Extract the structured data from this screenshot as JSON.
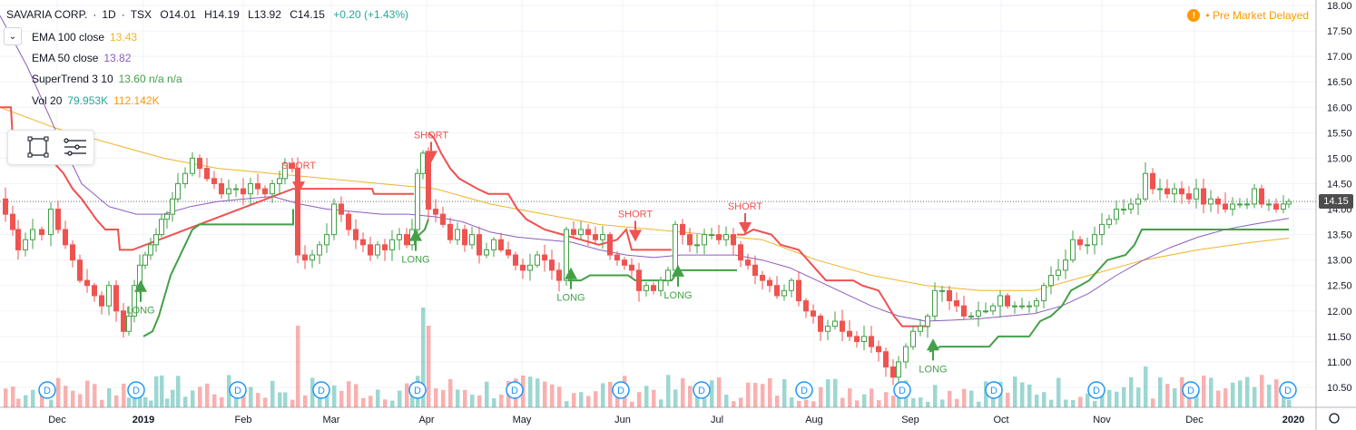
{
  "header": {
    "symbol": "SAVARIA CORP.",
    "interval": "1D",
    "exchange": "TSX",
    "open": "O14.01",
    "high": "H14.19",
    "low": "L13.92",
    "close": "C14.15",
    "change": "+0.20 (+1.43%)"
  },
  "indicators": [
    {
      "label": "EMA 100 close",
      "value": "13.43",
      "color": "#f0b429"
    },
    {
      "label": "EMA 50 close",
      "value": "13.82",
      "color": "#8b5cbf"
    },
    {
      "label": "SuperTrend 3 10",
      "value": "13.60  n/a  n/a",
      "color": "#43a047",
      "value2_color": "#ef5350"
    },
    {
      "label": "Vol 20",
      "value": "79.953K",
      "value2": "112.142K",
      "color": "#26a69a",
      "value2_color": "#ff9800"
    }
  ],
  "premarket": {
    "label": "Pre Market",
    "status": "Delayed",
    "icon": "exclamation-icon"
  },
  "last_price_label": "14.15",
  "dividend_marker": "D",
  "colors": {
    "up": "#43a047",
    "down": "#ef5350",
    "ema100": "#f0b429",
    "ema50": "#8b5cbf",
    "supertrend_up": "#43a047",
    "supertrend_down": "#f05050"
  },
  "chart_data": {
    "type": "candlestick",
    "y_axis_ticks": [
      "18.00",
      "17.50",
      "17.00",
      "16.50",
      "16.00",
      "15.50",
      "15.00",
      "14.50",
      "14.00",
      "13.50",
      "13.00",
      "12.50",
      "12.00",
      "11.50",
      "11.00",
      "10.50"
    ],
    "ylim": [
      10.3,
      18.0
    ],
    "x_axis_labels": [
      "Dec",
      "2019",
      "Feb",
      "Mar",
      "Apr",
      "May",
      "Jun",
      "Jul",
      "Aug",
      "Sep",
      "Oct",
      "Nov",
      "Dec",
      "2020"
    ],
    "last_price": 14.15,
    "close_path": [
      [
        0,
        14.2
      ],
      [
        6,
        13.9
      ],
      [
        14,
        13.6
      ],
      [
        20,
        13.2
      ],
      [
        28,
        13.4
      ],
      [
        36,
        13.6
      ],
      [
        46,
        13.5
      ],
      [
        56,
        14.0
      ],
      [
        64,
        13.6
      ],
      [
        72,
        13.3
      ],
      [
        80,
        13.0
      ],
      [
        88,
        12.6
      ],
      [
        96,
        12.5
      ],
      [
        104,
        12.3
      ],
      [
        112,
        12.1
      ],
      [
        120,
        12.5
      ],
      [
        128,
        12.0
      ],
      [
        136,
        11.6
      ],
      [
        142,
        11.9
      ],
      [
        148,
        12.5
      ],
      [
        154,
        12.9
      ],
      [
        160,
        13.1
      ],
      [
        166,
        13.3
      ],
      [
        172,
        13.5
      ],
      [
        178,
        13.8
      ],
      [
        184,
        13.9
      ],
      [
        190,
        14.2
      ],
      [
        196,
        14.5
      ],
      [
        204,
        14.7
      ],
      [
        212,
        15.0
      ],
      [
        220,
        14.8
      ],
      [
        228,
        14.6
      ],
      [
        236,
        14.5
      ],
      [
        244,
        14.3
      ],
      [
        252,
        14.4
      ],
      [
        260,
        14.4
      ],
      [
        268,
        14.3
      ],
      [
        276,
        14.5
      ],
      [
        284,
        14.4
      ],
      [
        292,
        14.3
      ],
      [
        300,
        14.5
      ],
      [
        308,
        14.6
      ],
      [
        314,
        14.9
      ],
      [
        322,
        14.8
      ],
      [
        328,
        13.1
      ],
      [
        336,
        13.0
      ],
      [
        344,
        13.1
      ],
      [
        352,
        13.3
      ],
      [
        360,
        13.5
      ],
      [
        368,
        14.1
      ],
      [
        376,
        13.9
      ],
      [
        384,
        13.6
      ],
      [
        392,
        13.4
      ],
      [
        400,
        13.3
      ],
      [
        408,
        13.1
      ],
      [
        416,
        13.3
      ],
      [
        424,
        13.2
      ],
      [
        432,
        13.4
      ],
      [
        440,
        13.5
      ],
      [
        448,
        13.3
      ],
      [
        454,
        13.6
      ],
      [
        460,
        14.7
      ],
      [
        466,
        15.1
      ],
      [
        472,
        14.0
      ],
      [
        480,
        13.9
      ],
      [
        488,
        13.7
      ],
      [
        496,
        13.4
      ],
      [
        504,
        13.6
      ],
      [
        512,
        13.3
      ],
      [
        520,
        13.5
      ],
      [
        528,
        13.1
      ],
      [
        536,
        13.2
      ],
      [
        544,
        13.4
      ],
      [
        552,
        13.2
      ],
      [
        560,
        13.1
      ],
      [
        568,
        12.9
      ],
      [
        576,
        12.8
      ],
      [
        584,
        12.9
      ],
      [
        592,
        13.1
      ],
      [
        600,
        13.0
      ],
      [
        608,
        12.8
      ],
      [
        616,
        12.6
      ],
      [
        624,
        13.6
      ],
      [
        632,
        13.5
      ],
      [
        640,
        13.6
      ],
      [
        648,
        13.5
      ],
      [
        656,
        13.4
      ],
      [
        664,
        13.5
      ],
      [
        672,
        13.1
      ],
      [
        680,
        13.0
      ],
      [
        688,
        12.9
      ],
      [
        696,
        12.8
      ],
      [
        704,
        12.4
      ],
      [
        712,
        12.5
      ],
      [
        720,
        12.4
      ],
      [
        728,
        12.6
      ],
      [
        736,
        12.8
      ],
      [
        744,
        13.7
      ],
      [
        752,
        13.5
      ],
      [
        760,
        13.3
      ],
      [
        768,
        13.3
      ],
      [
        776,
        13.5
      ],
      [
        784,
        13.5
      ],
      [
        792,
        13.4
      ],
      [
        800,
        13.5
      ],
      [
        808,
        13.3
      ],
      [
        816,
        13.0
      ],
      [
        824,
        12.9
      ],
      [
        832,
        12.7
      ],
      [
        840,
        12.6
      ],
      [
        848,
        12.5
      ],
      [
        856,
        12.3
      ],
      [
        864,
        12.4
      ],
      [
        872,
        12.6
      ],
      [
        880,
        12.2
      ],
      [
        888,
        12.0
      ],
      [
        896,
        11.9
      ],
      [
        904,
        11.6
      ],
      [
        912,
        11.7
      ],
      [
        920,
        11.8
      ],
      [
        928,
        11.6
      ],
      [
        936,
        11.5
      ],
      [
        944,
        11.4
      ],
      [
        952,
        11.5
      ],
      [
        960,
        11.3
      ],
      [
        968,
        11.2
      ],
      [
        976,
        10.9
      ],
      [
        984,
        10.7
      ],
      [
        990,
        11.0
      ],
      [
        998,
        11.3
      ],
      [
        1006,
        11.6
      ],
      [
        1014,
        11.7
      ],
      [
        1022,
        11.9
      ],
      [
        1030,
        12.4
      ],
      [
        1038,
        12.4
      ],
      [
        1046,
        12.2
      ],
      [
        1054,
        12.1
      ],
      [
        1062,
        11.9
      ],
      [
        1070,
        11.9
      ],
      [
        1078,
        12.0
      ],
      [
        1086,
        12.0
      ],
      [
        1094,
        12.1
      ],
      [
        1102,
        12.3
      ],
      [
        1110,
        12.1
      ],
      [
        1118,
        12.1
      ],
      [
        1126,
        12.1
      ],
      [
        1134,
        12.1
      ],
      [
        1142,
        12.2
      ],
      [
        1150,
        12.5
      ],
      [
        1158,
        12.7
      ],
      [
        1166,
        12.8
      ],
      [
        1174,
        13.0
      ],
      [
        1182,
        13.4
      ],
      [
        1190,
        13.3
      ],
      [
        1198,
        13.3
      ],
      [
        1206,
        13.5
      ],
      [
        1214,
        13.7
      ],
      [
        1222,
        13.8
      ],
      [
        1230,
        14.0
      ],
      [
        1238,
        14.0
      ],
      [
        1246,
        14.1
      ],
      [
        1254,
        14.2
      ],
      [
        1262,
        14.7
      ],
      [
        1270,
        14.4
      ],
      [
        1278,
        14.4
      ],
      [
        1286,
        14.3
      ],
      [
        1294,
        14.4
      ],
      [
        1302,
        14.3
      ],
      [
        1310,
        14.2
      ],
      [
        1318,
        14.4
      ],
      [
        1326,
        14.1
      ],
      [
        1334,
        14.2
      ],
      [
        1342,
        14.1
      ],
      [
        1350,
        14.0
      ],
      [
        1358,
        14.1
      ],
      [
        1366,
        14.1
      ],
      [
        1374,
        14.1
      ],
      [
        1382,
        14.4
      ],
      [
        1390,
        14.1
      ],
      [
        1398,
        14.1
      ],
      [
        1406,
        14.0
      ],
      [
        1414,
        14.1
      ],
      [
        1420,
        14.15
      ]
    ],
    "ema100": [
      [
        0,
        16.0
      ],
      [
        60,
        15.6
      ],
      [
        120,
        15.3
      ],
      [
        180,
        15.0
      ],
      [
        240,
        14.8
      ],
      [
        300,
        14.7
      ],
      [
        360,
        14.6
      ],
      [
        420,
        14.5
      ],
      [
        480,
        14.4
      ],
      [
        540,
        14.1
      ],
      [
        600,
        13.9
      ],
      [
        660,
        13.7
      ],
      [
        720,
        13.6
      ],
      [
        780,
        13.5
      ],
      [
        840,
        13.4
      ],
      [
        900,
        13.0
      ],
      [
        960,
        12.7
      ],
      [
        1020,
        12.5
      ],
      [
        1080,
        12.4
      ],
      [
        1140,
        12.4
      ],
      [
        1200,
        12.7
      ],
      [
        1260,
        13.0
      ],
      [
        1320,
        13.2
      ],
      [
        1380,
        13.35
      ],
      [
        1420,
        13.43
      ]
    ],
    "ema50": [
      [
        0,
        17.8
      ],
      [
        30,
        16.8
      ],
      [
        60,
        15.6
      ],
      [
        90,
        14.5
      ],
      [
        120,
        14.05
      ],
      [
        150,
        13.9
      ],
      [
        180,
        13.9
      ],
      [
        210,
        14.05
      ],
      [
        240,
        14.15
      ],
      [
        270,
        14.2
      ],
      [
        300,
        14.25
      ],
      [
        330,
        14.1
      ],
      [
        360,
        14.0
      ],
      [
        390,
        13.95
      ],
      [
        420,
        13.9
      ],
      [
        450,
        13.9
      ],
      [
        480,
        13.85
      ],
      [
        510,
        13.75
      ],
      [
        540,
        13.55
      ],
      [
        570,
        13.45
      ],
      [
        600,
        13.4
      ],
      [
        630,
        13.35
      ],
      [
        660,
        13.2
      ],
      [
        690,
        13.1
      ],
      [
        720,
        13.05
      ],
      [
        750,
        13.1
      ],
      [
        780,
        13.1
      ],
      [
        810,
        13.1
      ],
      [
        840,
        13.0
      ],
      [
        870,
        12.85
      ],
      [
        900,
        12.6
      ],
      [
        930,
        12.35
      ],
      [
        960,
        12.1
      ],
      [
        990,
        11.9
      ],
      [
        1020,
        11.8
      ],
      [
        1050,
        11.82
      ],
      [
        1080,
        11.85
      ],
      [
        1110,
        11.9
      ],
      [
        1140,
        11.95
      ],
      [
        1170,
        12.1
      ],
      [
        1200,
        12.35
      ],
      [
        1230,
        12.7
      ],
      [
        1260,
        13.0
      ],
      [
        1290,
        13.25
      ],
      [
        1320,
        13.45
      ],
      [
        1350,
        13.6
      ],
      [
        1380,
        13.7
      ],
      [
        1420,
        13.82
      ]
    ],
    "supertrend_down": [
      [
        0,
        16.0
      ],
      [
        12,
        16.0
      ],
      [
        14,
        15.4
      ],
      [
        40,
        15.4
      ],
      [
        42,
        15.0
      ],
      [
        60,
        14.9
      ],
      [
        70,
        14.7
      ],
      [
        80,
        14.4
      ],
      [
        90,
        14.2
      ],
      [
        98,
        14.0
      ],
      [
        106,
        13.8
      ],
      [
        116,
        13.6
      ],
      [
        130,
        13.6
      ],
      [
        132,
        13.2
      ],
      [
        146,
        13.2
      ],
      [
        323,
        14.4
      ],
      [
        410,
        14.4
      ],
      [
        412,
        14.3
      ],
      [
        456,
        14.3
      ]
    ],
    "supertrend_down2": [
      [
        472,
        15.5
      ],
      [
        478,
        15.4
      ],
      [
        486,
        15.1
      ],
      [
        496,
        14.8
      ],
      [
        506,
        14.6
      ],
      [
        516,
        14.5
      ],
      [
        526,
        14.4
      ],
      [
        538,
        14.3
      ],
      [
        560,
        14.3
      ],
      [
        570,
        14.0
      ],
      [
        580,
        13.8
      ],
      [
        600,
        13.6
      ],
      [
        620,
        13.5
      ],
      [
        640,
        13.4
      ],
      [
        660,
        13.3
      ],
      [
        680,
        13.4
      ],
      [
        690,
        13.6
      ],
      [
        696,
        13.2
      ],
      [
        740,
        13.2
      ]
    ],
    "supertrend_down3": [
      [
        812,
        13.5
      ],
      [
        820,
        13.5
      ],
      [
        830,
        13.6
      ],
      [
        850,
        13.5
      ],
      [
        860,
        13.3
      ],
      [
        880,
        13.2
      ],
      [
        890,
        13.0
      ],
      [
        900,
        12.8
      ],
      [
        910,
        12.6
      ],
      [
        940,
        12.6
      ],
      [
        950,
        12.5
      ],
      [
        968,
        12.4
      ],
      [
        975,
        12.2
      ],
      [
        985,
        11.9
      ],
      [
        994,
        11.7
      ],
      [
        1024,
        11.7
      ]
    ],
    "supertrend_up": [
      [
        158,
        11.5
      ],
      [
        168,
        11.6
      ],
      [
        175,
        11.9
      ],
      [
        188,
        12.7
      ],
      [
        196,
        13.0
      ],
      [
        204,
        13.3
      ],
      [
        212,
        13.6
      ],
      [
        220,
        13.7
      ],
      [
        323,
        13.7
      ],
      [
        323,
        14.0
      ]
    ],
    "supertrend_up2": [
      [
        456,
        13.4
      ],
      [
        462,
        13.5
      ],
      [
        468,
        13.6
      ],
      [
        472,
        13.8
      ]
    ],
    "supertrend_up3": [
      [
        626,
        12.6
      ],
      [
        640,
        12.6
      ],
      [
        650,
        12.7
      ],
      [
        692,
        12.7
      ],
      [
        700,
        12.6
      ],
      [
        740,
        12.6
      ],
      [
        748,
        12.8
      ],
      [
        812,
        12.8
      ]
    ],
    "supertrend_up4": [
      [
        1024,
        11.2
      ],
      [
        1036,
        11.3
      ],
      [
        1090,
        11.3
      ],
      [
        1100,
        11.5
      ],
      [
        1134,
        11.5
      ],
      [
        1146,
        11.8
      ],
      [
        1158,
        11.9
      ],
      [
        1170,
        12.1
      ],
      [
        1180,
        12.4
      ],
      [
        1190,
        12.5
      ],
      [
        1200,
        12.6
      ],
      [
        1210,
        12.8
      ],
      [
        1220,
        13.0
      ],
      [
        1240,
        13.1
      ],
      [
        1250,
        13.3
      ],
      [
        1258,
        13.6
      ],
      [
        1420,
        13.6
      ]
    ],
    "signals": [
      {
        "type": "LONG",
        "x": 155,
        "price": 12.5
      },
      {
        "type": "SHORT",
        "x": 329,
        "price": 14.4
      },
      {
        "type": "LONG",
        "x": 458,
        "price": 13.5
      },
      {
        "type": "SHORT",
        "x": 475,
        "price": 15.0
      },
      {
        "type": "LONG",
        "x": 629,
        "price": 12.75
      },
      {
        "type": "SHORT",
        "x": 700,
        "price": 13.45
      },
      {
        "type": "LONG",
        "x": 747,
        "price": 12.8
      },
      {
        "type": "SHORT",
        "x": 821,
        "price": 13.6
      },
      {
        "type": "LONG",
        "x": 1028,
        "price": 11.35
      }
    ],
    "dividend_x": [
      52,
      150,
      262,
      354,
      460,
      567,
      684,
      773,
      886,
      994,
      1095,
      1208,
      1312,
      1419
    ]
  }
}
